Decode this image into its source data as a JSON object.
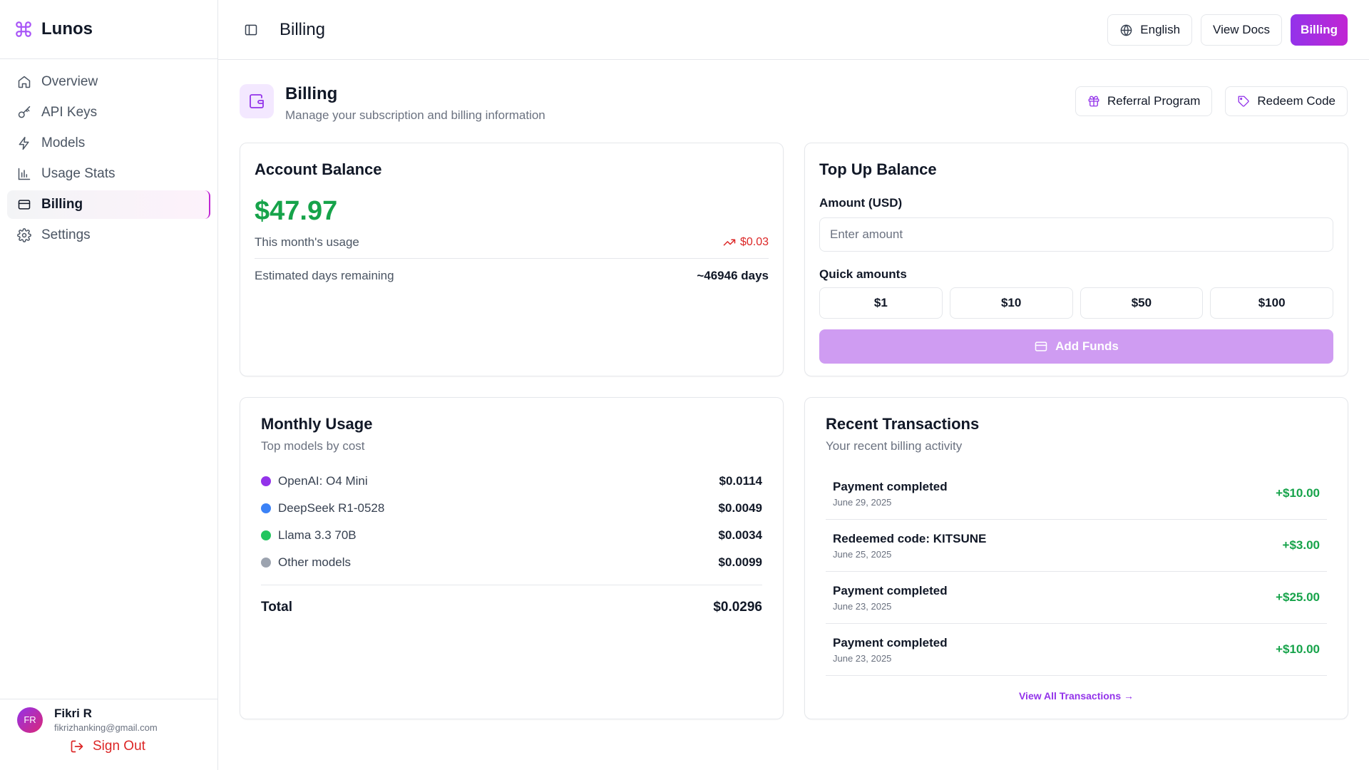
{
  "app": {
    "name": "Lunos"
  },
  "sidebar": {
    "items": [
      {
        "label": "Overview",
        "icon": "home-icon"
      },
      {
        "label": "API Keys",
        "icon": "key-icon"
      },
      {
        "label": "Models",
        "icon": "bolt-icon"
      },
      {
        "label": "Usage Stats",
        "icon": "bar-chart-icon"
      },
      {
        "label": "Billing",
        "icon": "credit-card-icon",
        "active": true
      },
      {
        "label": "Settings",
        "icon": "gear-icon"
      }
    ],
    "user": {
      "initials": "FR",
      "name": "Fikri R",
      "email": "fikrizhanking@gmail.com"
    },
    "sign_out_label": "Sign Out"
  },
  "header": {
    "title": "Billing",
    "language_label": "English",
    "docs_label": "View Docs",
    "billing_label": "Billing"
  },
  "page": {
    "title": "Billing",
    "subtitle": "Manage your subscription and billing information",
    "referral_label": "Referral Program",
    "redeem_label": "Redeem Code"
  },
  "balance": {
    "title": "Account Balance",
    "amount": "$47.97",
    "month_usage_label": "This month's usage",
    "month_usage_value": "$0.03",
    "days_label": "Estimated days remaining",
    "days_value": "~46946 days"
  },
  "topup": {
    "title": "Top Up Balance",
    "amount_label": "Amount (USD)",
    "amount_placeholder": "Enter amount",
    "quick_label": "Quick amounts",
    "quick_amounts": [
      "$1",
      "$10",
      "$50",
      "$100"
    ],
    "add_funds_label": "Add Funds"
  },
  "monthly": {
    "title": "Monthly Usage",
    "subtitle": "Top models by cost",
    "models": [
      {
        "name": "OpenAI: O4 Mini",
        "cost": "$0.0114",
        "color": "#9333ea"
      },
      {
        "name": "DeepSeek R1-0528",
        "cost": "$0.0049",
        "color": "#3b82f6"
      },
      {
        "name": "Llama 3.3 70B",
        "cost": "$0.0034",
        "color": "#22c55e"
      },
      {
        "name": "Other models",
        "cost": "$0.0099",
        "color": "#9ca3af"
      }
    ],
    "total_label": "Total",
    "total_value": "$0.0296"
  },
  "transactions": {
    "title": "Recent Transactions",
    "subtitle": "Your recent billing activity",
    "items": [
      {
        "desc": "Payment completed",
        "date": "June 29, 2025",
        "amount": "+$10.00"
      },
      {
        "desc": "Redeemed code: KITSUNE",
        "date": "June 25, 2025",
        "amount": "+$3.00"
      },
      {
        "desc": "Payment completed",
        "date": "June 23, 2025",
        "amount": "+$25.00"
      },
      {
        "desc": "Payment completed",
        "date": "June 23, 2025",
        "amount": "+$10.00"
      }
    ],
    "view_all_label": "View All Transactions →"
  },
  "colors": {
    "accent": "#9333ea",
    "positive": "#16a34a",
    "negative": "#dc2626"
  }
}
